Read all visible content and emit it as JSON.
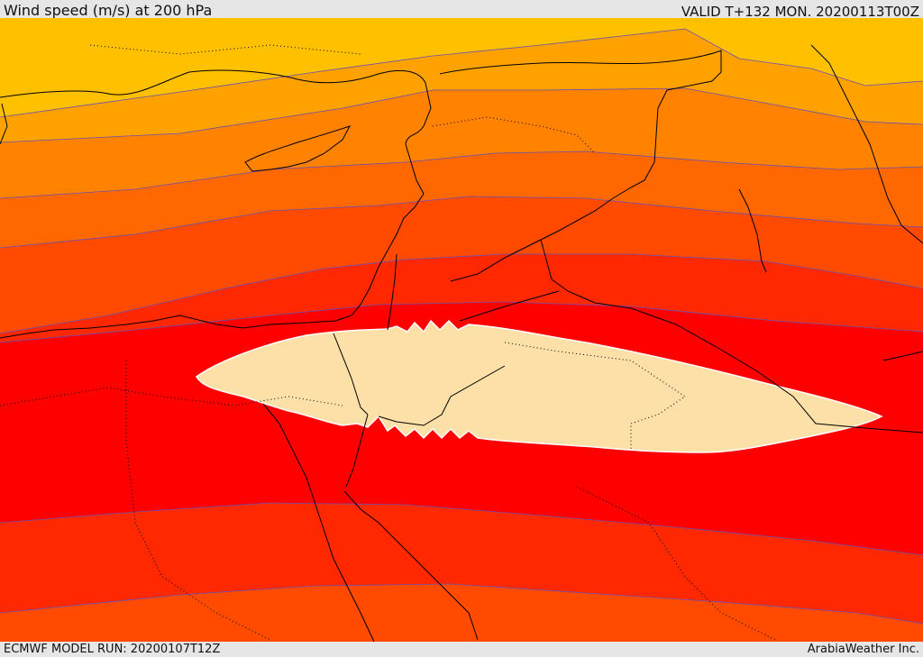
{
  "header": {
    "title": "Wind speed (m/s) at 200 hPa",
    "valid": "VALID T+132 MON. 20200113T00Z"
  },
  "footer": {
    "model_run": "ECMWF MODEL RUN: 20200107T12Z",
    "credit": "ArabiaWeather Inc."
  },
  "map": {
    "colors": {
      "band_1": "#ffc000",
      "band_2": "#ffa200",
      "band_3": "#ff8200",
      "band_4": "#ff6800",
      "band_5": "#ff4a00",
      "band_6": "#ff2800",
      "band_7": "#ff0000",
      "jet_core": "#fde0a8",
      "contour_line": "#6a4fb0",
      "coast_border": "#000000"
    }
  }
}
